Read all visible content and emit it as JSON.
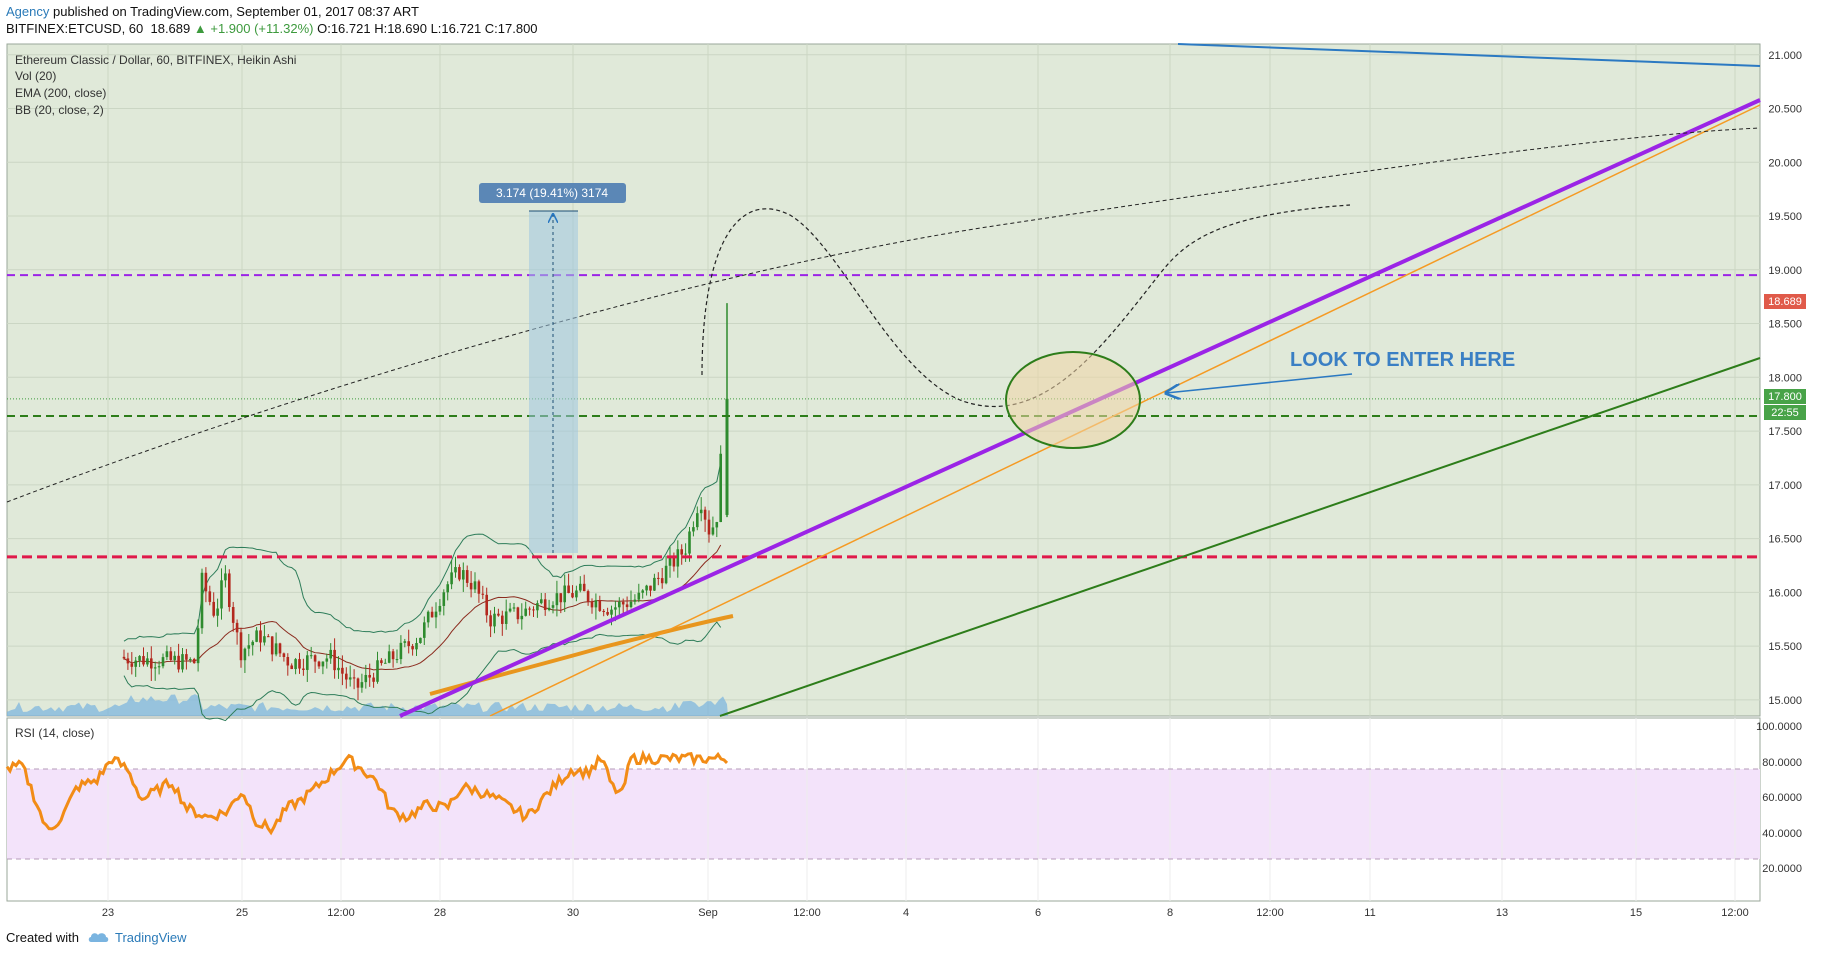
{
  "header": {
    "author": "Agency",
    "published": " published on TradingView.com, September 01, 2017 08:37 ART",
    "symbol": "BITFINEX:ETCUSD, 60",
    "last": "18.689",
    "change": "▲ +1.900 (+11.32%)",
    "ohlc": "O:16.721 H:18.690 L:16.721 C:17.800"
  },
  "legend": {
    "title": "Ethereum Classic / Dollar, 60, BITFINEX, Heikin Ashi",
    "vol": "Vol (20)",
    "ema": "EMA (200, close)",
    "bb": "BB (20, close, 2)"
  },
  "annotations": {
    "range_label": "3.174 (19.41%) 3174",
    "enter_text": "LOOK TO ENTER HERE"
  },
  "price_badges": {
    "last": "18.689",
    "close": "17.800",
    "countdown": "22:55"
  },
  "rsi_label": "RSI (14, close)",
  "footer": {
    "created": "Created with",
    "brand": "TradingView"
  },
  "colors": {
    "pane_bg": "#e0e9d9",
    "rsi_band": "#f3e3fa",
    "purple": "#9b24e6",
    "orange": "#f59a23",
    "green": "#2d7d1a",
    "red_dash": "#e0194a",
    "blue_line": "#2b79c2",
    "rsi_line": "#f28c16",
    "bull": "#2e8b2e",
    "bear": "#b3281e"
  },
  "chart_data": [
    {
      "type": "candlestick",
      "x_tick_labels": [
        "23",
        "25",
        "12:00",
        "28",
        "30",
        "Sep",
        "12:00",
        "4",
        "6",
        "8",
        "12:00",
        "11",
        "13",
        "15",
        "12:00"
      ],
      "y_tick_labels": [
        "15.000",
        "15.500",
        "16.000",
        "16.500",
        "17.000",
        "17.500",
        "18.000",
        "18.500",
        "19.000",
        "19.500",
        "20.000",
        "20.500",
        "21.000"
      ],
      "ylim": [
        14.85,
        21.1
      ],
      "levels": {
        "purple_dashed": 18.95,
        "green_dashed": 17.64,
        "red_dashed": 16.33
      },
      "anchors": [
        {
          "x": 0,
          "y": 15.4
        },
        {
          "x": 95,
          "y": 15.35
        },
        {
          "x": 102,
          "y": 16.1
        },
        {
          "x": 115,
          "y": 15.8
        },
        {
          "x": 125,
          "y": 16.15
        },
        {
          "x": 140,
          "y": 15.45
        },
        {
          "x": 160,
          "y": 15.6
        },
        {
          "x": 190,
          "y": 15.35
        },
        {
          "x": 230,
          "y": 15.4
        },
        {
          "x": 255,
          "y": 15.1
        },
        {
          "x": 280,
          "y": 15.3
        },
        {
          "x": 320,
          "y": 15.6
        },
        {
          "x": 345,
          "y": 16.05
        },
        {
          "x": 360,
          "y": 16.2
        },
        {
          "x": 375,
          "y": 16.05
        },
        {
          "x": 390,
          "y": 15.75
        },
        {
          "x": 420,
          "y": 15.8
        },
        {
          "x": 450,
          "y": 15.95
        },
        {
          "x": 480,
          "y": 16.0
        },
        {
          "x": 510,
          "y": 15.85
        },
        {
          "x": 540,
          "y": 15.95
        },
        {
          "x": 565,
          "y": 16.2
        },
        {
          "x": 585,
          "y": 16.4
        },
        {
          "x": 600,
          "y": 16.9
        },
        {
          "x": 610,
          "y": 16.55
        },
        {
          "x": 618,
          "y": 16.75
        },
        {
          "x": 624,
          "y": 17.8
        }
      ],
      "rsi_anchors": [
        {
          "x": 0,
          "y": 72
        },
        {
          "x": 15,
          "y": 74
        },
        {
          "x": 25,
          "y": 60
        },
        {
          "x": 40,
          "y": 37
        },
        {
          "x": 55,
          "y": 45
        },
        {
          "x": 70,
          "y": 62
        },
        {
          "x": 90,
          "y": 66
        },
        {
          "x": 105,
          "y": 78
        },
        {
          "x": 120,
          "y": 72
        },
        {
          "x": 135,
          "y": 55
        },
        {
          "x": 150,
          "y": 60
        },
        {
          "x": 165,
          "y": 65
        },
        {
          "x": 180,
          "y": 50
        },
        {
          "x": 200,
          "y": 45
        },
        {
          "x": 220,
          "y": 48
        },
        {
          "x": 235,
          "y": 60
        },
        {
          "x": 250,
          "y": 42
        },
        {
          "x": 265,
          "y": 38
        },
        {
          "x": 280,
          "y": 50
        },
        {
          "x": 295,
          "y": 55
        },
        {
          "x": 310,
          "y": 62
        },
        {
          "x": 325,
          "y": 70
        },
        {
          "x": 340,
          "y": 78
        },
        {
          "x": 355,
          "y": 72
        },
        {
          "x": 370,
          "y": 65
        },
        {
          "x": 385,
          "y": 48
        },
        {
          "x": 400,
          "y": 45
        },
        {
          "x": 420,
          "y": 52
        },
        {
          "x": 440,
          "y": 50
        },
        {
          "x": 455,
          "y": 62
        },
        {
          "x": 470,
          "y": 60
        },
        {
          "x": 490,
          "y": 55
        },
        {
          "x": 505,
          "y": 50
        },
        {
          "x": 520,
          "y": 45
        },
        {
          "x": 535,
          "y": 55
        },
        {
          "x": 550,
          "y": 64
        },
        {
          "x": 565,
          "y": 72
        },
        {
          "x": 580,
          "y": 70
        },
        {
          "x": 595,
          "y": 78
        },
        {
          "x": 605,
          "y": 62
        },
        {
          "x": 615,
          "y": 58
        },
        {
          "x": 624,
          "y": 78
        }
      ]
    }
  ]
}
